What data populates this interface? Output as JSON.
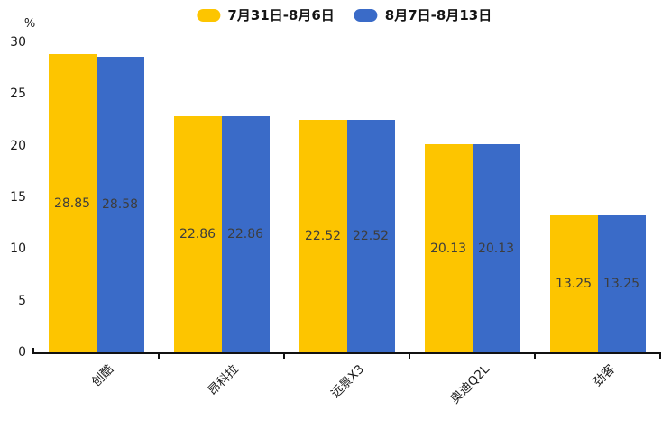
{
  "legend": {
    "items": [
      {
        "label": "7月31日-8月6日",
        "color": "#FDC500"
      },
      {
        "label": "8月7日-8月13日",
        "color": "#3A6BC8"
      }
    ]
  },
  "y_axis": {
    "unit_label": "%",
    "ticks": [
      0,
      5,
      10,
      15,
      20,
      25,
      30
    ]
  },
  "chart_data": {
    "type": "bar",
    "categories": [
      "创酷",
      "昂科拉",
      "远景X3",
      "奥迪Q2L",
      "劲客"
    ],
    "series": [
      {
        "name": "7月31日-8月6日",
        "color": "#FDC500",
        "values": [
          28.85,
          22.86,
          22.52,
          20.13,
          13.25
        ]
      },
      {
        "name": "8月7日-8月13日",
        "color": "#3A6BC8",
        "values": [
          28.58,
          22.86,
          22.52,
          20.13,
          13.25
        ]
      }
    ],
    "title": "",
    "xlabel": "",
    "ylabel": "%",
    "ylim": [
      0,
      30
    ],
    "grid": false,
    "legend_position": "top",
    "value_labels": "inside-center"
  }
}
